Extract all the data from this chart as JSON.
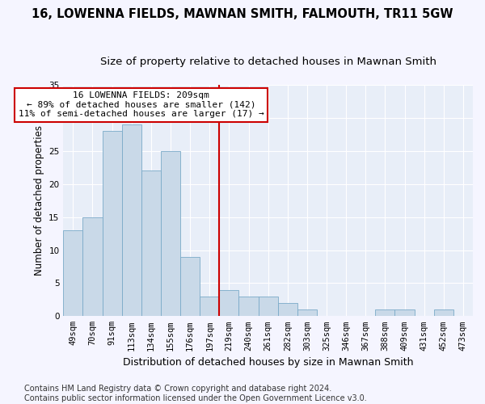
{
  "title": "16, LOWENNA FIELDS, MAWNAN SMITH, FALMOUTH, TR11 5GW",
  "subtitle": "Size of property relative to detached houses in Mawnan Smith",
  "xlabel": "Distribution of detached houses by size in Mawnan Smith",
  "ylabel": "Number of detached properties",
  "categories": [
    "49sqm",
    "70sqm",
    "91sqm",
    "113sqm",
    "134sqm",
    "155sqm",
    "176sqm",
    "197sqm",
    "219sqm",
    "240sqm",
    "261sqm",
    "282sqm",
    "303sqm",
    "325sqm",
    "346sqm",
    "367sqm",
    "388sqm",
    "409sqm",
    "431sqm",
    "452sqm",
    "473sqm"
  ],
  "values": [
    13,
    15,
    28,
    29,
    22,
    25,
    9,
    3,
    4,
    3,
    3,
    2,
    1,
    0,
    0,
    0,
    1,
    1,
    0,
    1,
    0
  ],
  "bar_color": "#c9d9e8",
  "bar_edge_color": "#7aaac8",
  "vline_x": 7.5,
  "vline_color": "#cc0000",
  "annotation_text": "16 LOWENNA FIELDS: 209sqm\n← 89% of detached houses are smaller (142)\n11% of semi-detached houses are larger (17) →",
  "annotation_box_color": "#ffffff",
  "annotation_box_edge": "#cc0000",
  "ylim": [
    0,
    35
  ],
  "yticks": [
    0,
    5,
    10,
    15,
    20,
    25,
    30,
    35
  ],
  "footer": "Contains HM Land Registry data © Crown copyright and database right 2024.\nContains public sector information licensed under the Open Government Licence v3.0.",
  "bg_color": "#e8eef8",
  "grid_color": "#ffffff",
  "fig_bg_color": "#f5f5ff",
  "title_fontsize": 10.5,
  "subtitle_fontsize": 9.5,
  "xlabel_fontsize": 9,
  "ylabel_fontsize": 8.5,
  "tick_fontsize": 7.5,
  "footer_fontsize": 7,
  "annot_fontsize": 8
}
